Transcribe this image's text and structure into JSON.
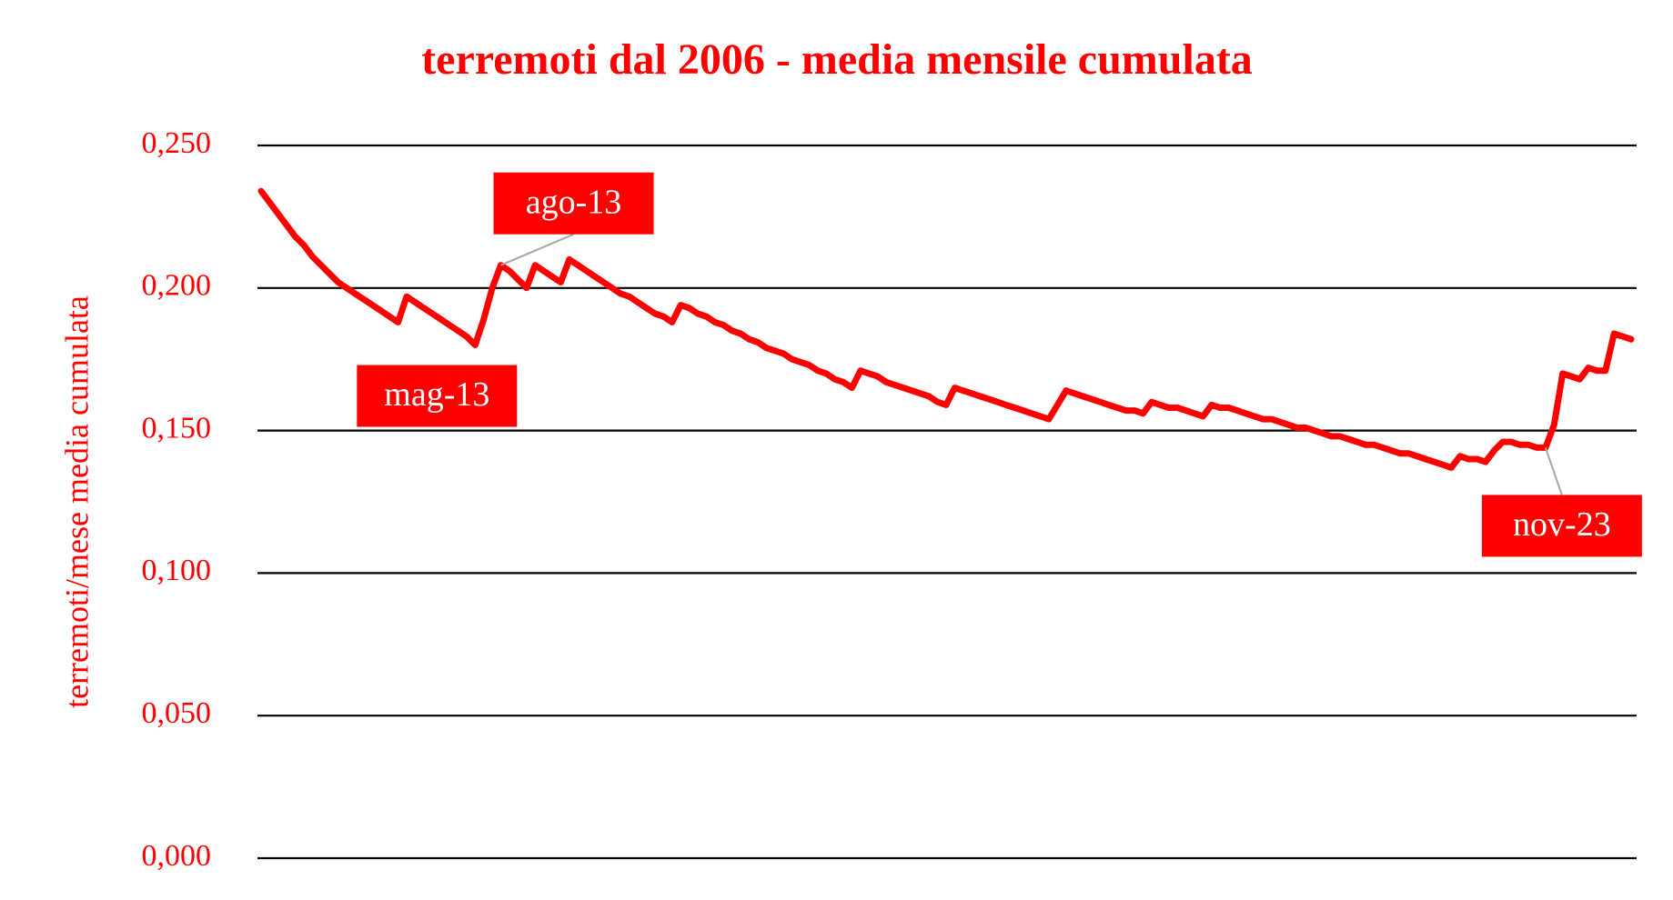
{
  "chart_data": {
    "type": "line",
    "title": "terremoti dal 2006 - media mensile cumulata",
    "y_label": "terremoti/mese media cumulata",
    "categories": [
      null,
      null,
      null,
      null,
      null,
      null,
      null,
      null,
      null,
      null,
      null,
      null,
      null,
      null,
      null,
      null,
      null,
      null,
      null,
      null,
      null,
      null,
      null,
      null,
      null,
      "mag-13",
      null,
      null,
      "ago-13",
      null,
      null,
      null,
      null,
      null,
      null,
      null,
      null,
      null,
      null,
      null,
      null,
      null,
      null,
      null,
      null,
      null,
      null,
      null,
      null,
      null,
      null,
      null,
      null,
      null,
      null,
      null,
      null,
      null,
      null,
      null,
      null,
      null,
      null,
      null,
      null,
      null,
      null,
      null,
      null,
      null,
      null,
      null,
      null,
      null,
      null,
      null,
      null,
      null,
      null,
      null,
      null,
      null,
      null,
      null,
      null,
      null,
      null,
      null,
      null,
      null,
      null,
      null,
      null,
      null,
      null,
      null,
      null,
      null,
      null,
      null,
      null,
      null,
      null,
      null,
      null,
      null,
      null,
      null,
      null,
      null,
      null,
      null,
      null,
      null,
      null,
      null,
      null,
      null,
      null,
      null,
      null,
      null,
      null,
      null,
      null,
      null,
      null,
      null,
      null,
      null,
      null,
      null,
      null,
      null,
      null,
      null,
      null,
      null,
      null,
      null,
      null,
      null,
      null,
      null,
      null,
      null,
      null,
      null,
      null,
      null,
      "nov-23",
      null,
      null,
      null,
      null,
      null,
      null,
      null,
      null,
      null,
      null
    ],
    "values": [
      0.234,
      0.23,
      0.226,
      0.222,
      0.218,
      0.215,
      0.211,
      0.208,
      0.205,
      0.202,
      0.2,
      0.198,
      0.196,
      0.194,
      0.192,
      0.19,
      0.188,
      0.197,
      0.195,
      0.193,
      0.191,
      0.189,
      0.187,
      0.185,
      0.183,
      0.18,
      0.189,
      0.2,
      0.208,
      0.206,
      0.203,
      0.2,
      0.208,
      0.206,
      0.204,
      0.202,
      0.21,
      0.208,
      0.206,
      0.204,
      0.202,
      0.2,
      0.198,
      0.197,
      0.195,
      0.193,
      0.191,
      0.19,
      0.188,
      0.194,
      0.193,
      0.191,
      0.19,
      0.188,
      0.187,
      0.185,
      0.184,
      0.182,
      0.181,
      0.179,
      0.178,
      0.177,
      0.175,
      0.174,
      0.173,
      0.171,
      0.17,
      0.168,
      0.167,
      0.165,
      0.171,
      0.17,
      0.169,
      0.167,
      0.166,
      0.165,
      0.164,
      0.163,
      0.162,
      0.16,
      0.159,
      0.165,
      0.164,
      0.163,
      0.162,
      0.161,
      0.16,
      0.159,
      0.158,
      0.157,
      0.156,
      0.155,
      0.154,
      0.159,
      0.164,
      0.163,
      0.162,
      0.161,
      0.16,
      0.159,
      0.158,
      0.157,
      0.157,
      0.156,
      0.16,
      0.159,
      0.158,
      0.158,
      0.157,
      0.156,
      0.155,
      0.159,
      0.158,
      0.158,
      0.157,
      0.156,
      0.155,
      0.154,
      0.154,
      0.153,
      0.152,
      0.151,
      0.151,
      0.15,
      0.149,
      0.148,
      0.148,
      0.147,
      0.146,
      0.145,
      0.145,
      0.144,
      0.143,
      0.142,
      0.142,
      0.141,
      0.14,
      0.139,
      0.138,
      0.137,
      0.141,
      0.14,
      0.14,
      0.139,
      0.143,
      0.146,
      0.146,
      0.145,
      0.145,
      0.144,
      0.144,
      0.152,
      0.17,
      0.169,
      0.168,
      0.172,
      0.171,
      0.171,
      0.184,
      0.183,
      0.182
    ],
    "color": "#ff0000",
    "ylim": [
      0,
      0.25
    ],
    "yticks": [
      {
        "value": 0,
        "label": "0,000"
      },
      {
        "value": 0.05,
        "label": "0,050"
      },
      {
        "value": 0.1,
        "label": "0,100"
      },
      {
        "value": 0.15,
        "label": "0,150"
      },
      {
        "value": 0.2,
        "label": "0,200"
      },
      {
        "value": 0.25,
        "label": "0,250"
      }
    ],
    "grid": true
  }
}
